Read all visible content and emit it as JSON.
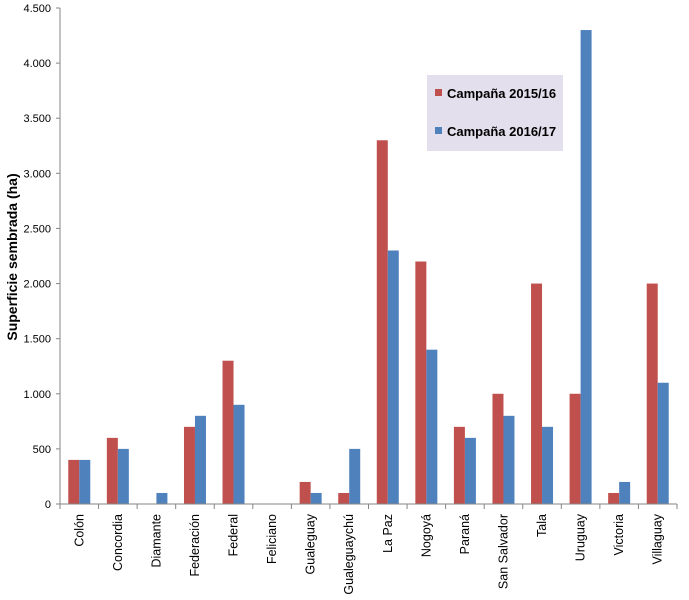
{
  "chart_data": {
    "type": "bar",
    "title": "",
    "xlabel": "",
    "ylabel": "Superficie sembrada  (ha)",
    "ylim": [
      0,
      4500
    ],
    "yticks": [
      0,
      500,
      1000,
      1500,
      2000,
      2500,
      3000,
      3500,
      4000,
      4500
    ],
    "ytick_labels": [
      "0",
      "500",
      "1.000",
      "1.500",
      "2.000",
      "2.500",
      "3.000",
      "3.500",
      "4.000",
      "4.500"
    ],
    "grid": false,
    "legend_position": "top-right",
    "categories": [
      "Colón",
      "Concordia",
      "Diamante",
      "Federación",
      "Federal",
      "Feliciano",
      "Gualeguay",
      "Gualeguaychú",
      "La Paz",
      "Nogoyá",
      "Paraná",
      "San Salvador",
      "Tala",
      "Uruguay",
      "Victoria",
      "Villaguay"
    ],
    "series": [
      {
        "name": "Campaña 2015/16",
        "color": "#c0504d",
        "values": [
          400,
          600,
          0,
          700,
          1300,
          0,
          200,
          100,
          3300,
          2200,
          700,
          1000,
          2000,
          1000,
          100,
          2000
        ]
      },
      {
        "name": "Campaña 2016/17",
        "color": "#4f81bd",
        "values": [
          400,
          500,
          100,
          800,
          900,
          0,
          100,
          500,
          2300,
          1400,
          600,
          800,
          700,
          4300,
          200,
          1100
        ]
      }
    ]
  }
}
